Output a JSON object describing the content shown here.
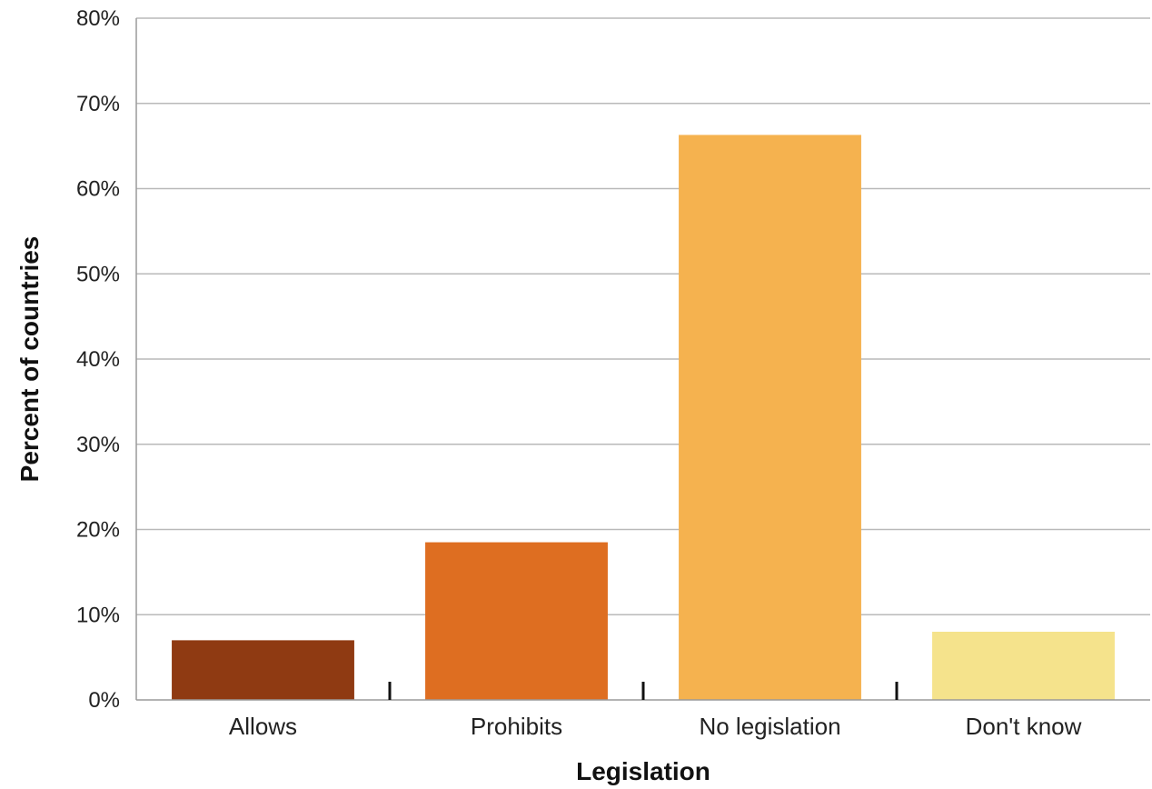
{
  "chart_data": {
    "type": "bar",
    "title": "",
    "xlabel": "Legislation",
    "ylabel": "Percent of countries",
    "categories": [
      "Allows",
      "Prohibits",
      "No legislation",
      "Don't know"
    ],
    "values": [
      7,
      18.5,
      66.3,
      8
    ],
    "colors": [
      "#8f3a12",
      "#de6e21",
      "#f5b24f",
      "#f5e38c"
    ],
    "ylim": [
      0,
      80
    ],
    "yticks": [
      0,
      10,
      20,
      30,
      40,
      50,
      60,
      70,
      80
    ],
    "ytick_labels": [
      "0%",
      "10%",
      "20%",
      "30%",
      "40%",
      "50%",
      "60%",
      "70%",
      "80%"
    ],
    "grid": true,
    "legend": "none"
  }
}
